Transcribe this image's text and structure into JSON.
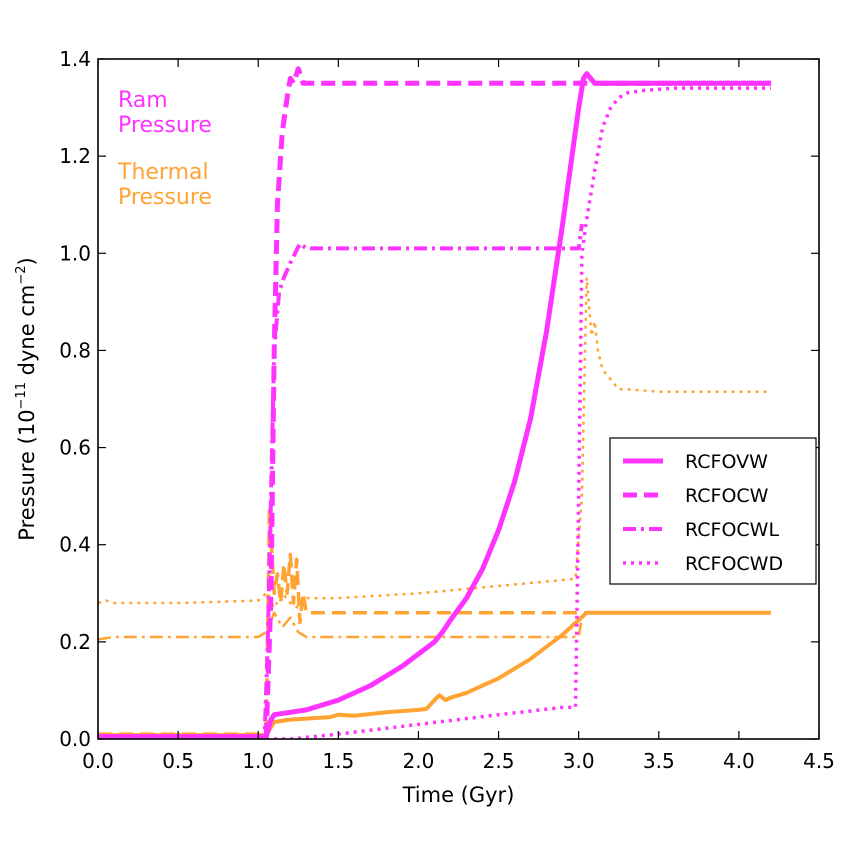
{
  "chart_data": {
    "type": "line",
    "xlabel": "Time (Gyr)",
    "ylabel_parts": {
      "prefix": "Pressure (10",
      "exponent": "−11",
      "middle": " dyne cm",
      "unit_exponent": "−2",
      "suffix": ")"
    },
    "xlim": [
      0.0,
      4.5
    ],
    "ylim": [
      0.0,
      1.4
    ],
    "xticks": [
      "0.0",
      "0.5",
      "1.0",
      "1.5",
      "2.0",
      "2.5",
      "3.0",
      "3.5",
      "4.0",
      "4.5"
    ],
    "yticks": [
      "0.0",
      "0.2",
      "0.4",
      "0.6",
      "0.8",
      "1.0",
      "1.2",
      "1.4"
    ],
    "grid": false,
    "legend_position": "center-right",
    "colors": {
      "ram": "#ff33ff",
      "thermal": "#ffa333"
    },
    "annotations": [
      {
        "lines": [
          "Ram",
          "Pressure"
        ],
        "color": "#ff33ff"
      },
      {
        "lines": [
          "Thermal",
          "Pressure"
        ],
        "color": "#ffa333"
      }
    ],
    "legend": [
      {
        "name": "RCFOVW",
        "style": "solid"
      },
      {
        "name": "RCFOCW",
        "style": "dashed"
      },
      {
        "name": "RCFOCWL",
        "style": "dashdot"
      },
      {
        "name": "RCFOCWD",
        "style": "dotted"
      }
    ],
    "series": [
      {
        "name": "RCFOVW",
        "quantity": "ram",
        "style": "solid",
        "x": [
          0.0,
          1.05,
          1.08,
          1.1,
          1.2,
          1.3,
          1.4,
          1.5,
          1.6,
          1.7,
          1.8,
          1.9,
          2.0,
          2.1,
          2.15,
          2.2,
          2.3,
          2.4,
          2.5,
          2.6,
          2.7,
          2.8,
          2.9,
          3.0,
          3.03,
          3.05,
          3.1,
          4.2
        ],
        "y": [
          0.005,
          0.005,
          0.04,
          0.05,
          0.055,
          0.06,
          0.07,
          0.08,
          0.095,
          0.11,
          0.13,
          0.15,
          0.175,
          0.2,
          0.22,
          0.245,
          0.29,
          0.35,
          0.43,
          0.53,
          0.66,
          0.84,
          1.06,
          1.3,
          1.36,
          1.37,
          1.35,
          1.35
        ]
      },
      {
        "name": "RCFOCW",
        "quantity": "ram",
        "style": "dashed",
        "x": [
          0.0,
          1.05,
          1.08,
          1.1,
          1.12,
          1.15,
          1.18,
          1.2,
          1.22,
          1.25,
          1.28,
          1.3,
          1.4,
          4.2
        ],
        "y": [
          0.005,
          0.005,
          0.3,
          0.8,
          1.1,
          1.25,
          1.32,
          1.36,
          1.35,
          1.38,
          1.35,
          1.35,
          1.35,
          1.35
        ]
      },
      {
        "name": "RCFOCWL",
        "quantity": "ram",
        "style": "dashdot",
        "x": [
          0.0,
          1.04,
          1.06,
          1.08,
          1.1,
          1.13,
          1.16,
          1.2,
          1.23,
          1.26,
          1.3,
          3.0,
          3.02
        ],
        "y": [
          0.005,
          0.005,
          0.2,
          0.5,
          0.8,
          0.92,
          0.95,
          0.98,
          1.0,
          1.02,
          1.01,
          1.01,
          1.06
        ]
      },
      {
        "name": "RCFOCWD",
        "quantity": "ram",
        "style": "dotted",
        "x": [
          0.0,
          1.2,
          1.5,
          2.0,
          2.5,
          2.9,
          2.98,
          3.0,
          3.02,
          3.05,
          3.1,
          3.15,
          3.2,
          3.25,
          3.3,
          3.4,
          3.6,
          4.2
        ],
        "y": [
          0.0,
          0.0,
          0.01,
          0.03,
          0.05,
          0.065,
          0.065,
          0.5,
          1.0,
          1.07,
          1.17,
          1.26,
          1.3,
          1.32,
          1.33,
          1.335,
          1.34,
          1.34
        ]
      },
      {
        "name": "RCFOVW",
        "quantity": "thermal",
        "style": "solid",
        "x": [
          0.0,
          1.05,
          1.1,
          1.2,
          1.3,
          1.45,
          1.5,
          1.6,
          1.8,
          2.0,
          2.05,
          2.1,
          2.13,
          2.17,
          2.2,
          2.3,
          2.4,
          2.5,
          2.6,
          2.7,
          2.8,
          2.9,
          3.0,
          3.05,
          4.2
        ],
        "y": [
          0.008,
          0.008,
          0.035,
          0.04,
          0.042,
          0.045,
          0.05,
          0.048,
          0.055,
          0.06,
          0.062,
          0.08,
          0.09,
          0.08,
          0.085,
          0.095,
          0.11,
          0.125,
          0.145,
          0.165,
          0.19,
          0.215,
          0.245,
          0.26,
          0.26
        ]
      },
      {
        "name": "RCFOCW",
        "quantity": "thermal",
        "style": "dashed",
        "x": [
          0.0,
          1.05,
          1.07,
          1.1,
          1.12,
          1.14,
          1.16,
          1.18,
          1.2,
          1.22,
          1.24,
          1.26,
          1.28,
          1.3,
          1.35,
          4.2
        ],
        "y": [
          0.01,
          0.01,
          0.47,
          0.3,
          0.34,
          0.28,
          0.36,
          0.3,
          0.38,
          0.28,
          0.37,
          0.24,
          0.3,
          0.26,
          0.26,
          0.26
        ]
      },
      {
        "name": "RCFOCWL",
        "quantity": "thermal",
        "style": "dashdot",
        "x": [
          0.0,
          0.1,
          0.5,
          1.0,
          1.05,
          1.1,
          1.15,
          1.2,
          1.25,
          1.3,
          1.5,
          2.0,
          2.5,
          3.0,
          3.02
        ],
        "y": [
          0.205,
          0.21,
          0.21,
          0.21,
          0.22,
          0.26,
          0.23,
          0.25,
          0.22,
          0.21,
          0.21,
          0.21,
          0.21,
          0.21,
          0.25
        ]
      },
      {
        "name": "RCFOCWD",
        "quantity": "thermal",
        "style": "dotted",
        "x": [
          0.0,
          0.05,
          0.1,
          0.5,
          1.0,
          1.05,
          1.1,
          1.15,
          1.2,
          1.25,
          1.3,
          1.5,
          2.0,
          2.5,
          2.98,
          3.02,
          3.05,
          3.08,
          3.1,
          3.12,
          3.15,
          3.2,
          3.25,
          3.3,
          3.5,
          4.2
        ],
        "y": [
          0.28,
          0.285,
          0.28,
          0.28,
          0.285,
          0.3,
          0.27,
          0.3,
          0.28,
          0.27,
          0.29,
          0.29,
          0.3,
          0.315,
          0.33,
          0.5,
          0.95,
          0.83,
          0.86,
          0.8,
          0.76,
          0.74,
          0.72,
          0.72,
          0.715,
          0.715
        ]
      }
    ]
  }
}
